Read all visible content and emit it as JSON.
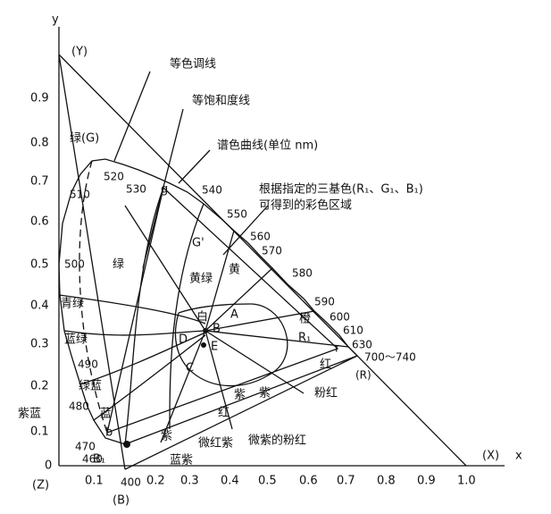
{
  "axes": {
    "x_label": "x",
    "y_label": "y",
    "x_ticks": [
      "0.1",
      "0.2",
      "0.3",
      "0.4",
      "0.5",
      "0.6",
      "0.7",
      "0.8",
      "0.9",
      "1.0"
    ],
    "y_ticks": [
      "0",
      "0.1",
      "0.2",
      "0.3",
      "0.4",
      "0.5",
      "0.6",
      "0.7",
      "0.8",
      "0.9"
    ]
  },
  "corners": {
    "Y": "(Y)",
    "X": "(X)",
    "Z": "(Z)",
    "B": "(B)",
    "R": "(R)"
  },
  "annotations": {
    "hue": "等色调线",
    "saturation": "等饱和度线",
    "locus": "谱色曲线(单位 nm)",
    "gamut_1": "根据指定的三基色(R₁、G₁、B₁)",
    "gamut_2": "可得到的彩色区域"
  },
  "wavelengths": [
    "400",
    "460",
    "470",
    "480",
    "490",
    "500",
    "510",
    "520",
    "530",
    "540",
    "550",
    "560",
    "570",
    "580",
    "590",
    "600",
    "610",
    "630",
    "700～740"
  ],
  "primaries": {
    "G": "绿(G)",
    "g": "g",
    "G1": "G'",
    "r": "r",
    "R1": "R₁",
    "b": "b",
    "B1": "B₁"
  },
  "regions": [
    "绿",
    "黄绿",
    "黄",
    "青绿",
    "蓝绿",
    "绿蓝",
    "蓝",
    "紫蓝",
    "紫",
    "蓝紫",
    "微红紫",
    "微紫的粉红",
    "红",
    "紫",
    "紫",
    "红",
    "橙",
    "粉红"
  ],
  "points": [
    "白",
    "A",
    "B",
    "C",
    "D",
    "E"
  ]
}
